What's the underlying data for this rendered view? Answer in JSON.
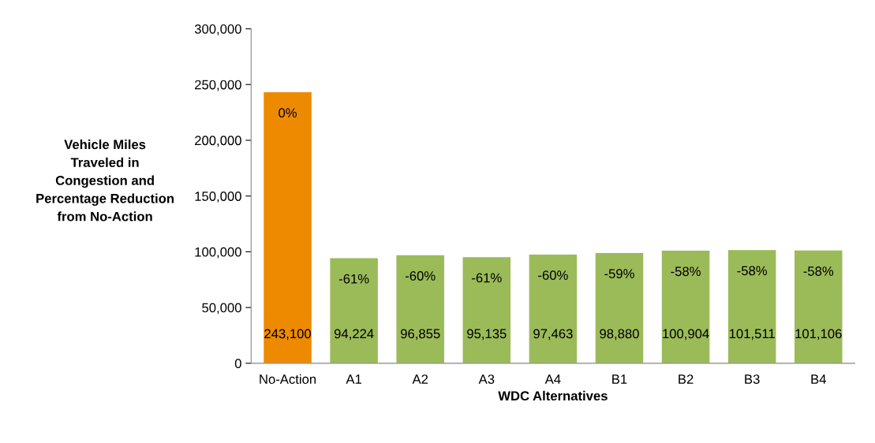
{
  "chart_data": {
    "type": "bar",
    "xlabel": "WDC Alternatives",
    "ylabel": "Vehicle Miles\nTraveled in\nCongestion and\nPercentage Reduction\nfrom No-Action",
    "categories": [
      "No-Action",
      "A1",
      "A2",
      "A3",
      "A4",
      "B1",
      "B2",
      "B3",
      "B4"
    ],
    "values": [
      243100,
      94224,
      96855,
      95135,
      97463,
      98880,
      100904,
      101511,
      101106
    ],
    "colors": [
      "#ee8a00",
      "#9bbb59",
      "#9bbb59",
      "#9bbb59",
      "#9bbb59",
      "#9bbb59",
      "#9bbb59",
      "#9bbb59",
      "#9bbb59"
    ],
    "value_labels": [
      "243,100",
      "94,224",
      "96,855",
      "95,135",
      "97,463",
      "98,880",
      "100,904",
      "101,511",
      "101,106"
    ],
    "annotations": [
      "0%",
      "-61%",
      "-60%",
      "-61%",
      "-60%",
      "-59%",
      "-58%",
      "-58%",
      "-58%"
    ],
    "ylim": [
      0,
      300000
    ],
    "yticks": [
      0,
      {
        "value": 50000,
        "label": "50,000"
      },
      {
        "value": 100000,
        "label": "100,000"
      },
      {
        "value": 150000,
        "label": "150,000"
      },
      {
        "value": 200000,
        "label": "200,000"
      },
      {
        "value": 250000,
        "label": "250,000"
      },
      {
        "value": 300000,
        "label": "300,000"
      }
    ],
    "grid": false,
    "legend": false
  }
}
